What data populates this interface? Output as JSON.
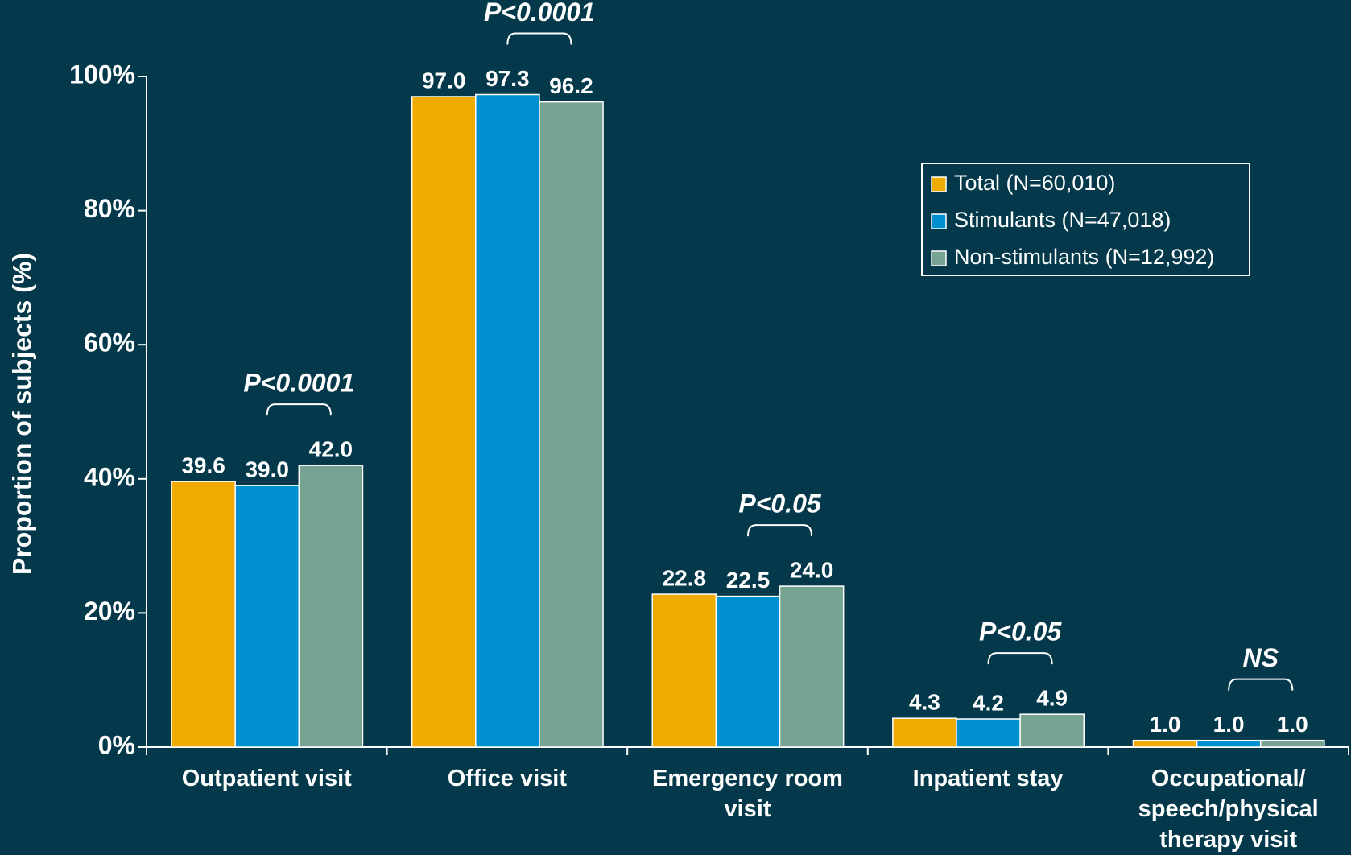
{
  "chart_data": {
    "type": "bar",
    "y_label": "Proportion of subjects (%)",
    "categories": [
      "Outpatient visit",
      "Office visit",
      "Emergency room visit",
      "Inpatient stay",
      "Occupational/ speech/physical therapy visit"
    ],
    "series": [
      {
        "name": "Total (N=60,010)",
        "color": "#f0ab00",
        "values": [
          39.6,
          97.0,
          22.8,
          4.3,
          1.0
        ],
        "value_labels": [
          "39.6",
          "97.0",
          "22.8",
          "4.3",
          "1.0"
        ]
      },
      {
        "name": "Stimulants (N=47,018)",
        "color": "#0090d0",
        "values": [
          39.0,
          97.3,
          22.5,
          4.2,
          1.0
        ],
        "value_labels": [
          "39.0",
          "97.3",
          "22.5",
          "4.2",
          "1.0"
        ]
      },
      {
        "name": "Non-stimulants (N=12,992)",
        "color": "#76a392",
        "values": [
          42.0,
          96.2,
          24.0,
          4.9,
          1.0
        ],
        "value_labels": [
          "42.0",
          "96.2",
          "24.0",
          "4.9",
          "1.0"
        ]
      }
    ],
    "annotations": [
      "P<0.0001",
      "P<0.0001",
      "P<0.05",
      "P<0.05",
      "NS"
    ],
    "ylim": [
      0,
      100
    ],
    "yticks": [
      {
        "value": 0,
        "label": "0%"
      },
      {
        "value": 20,
        "label": "20%"
      },
      {
        "value": 40,
        "label": "40%"
      },
      {
        "value": 60,
        "label": "60%"
      },
      {
        "value": 80,
        "label": "80%"
      },
      {
        "value": 100,
        "label": "100%"
      }
    ],
    "legend": "upper right"
  }
}
